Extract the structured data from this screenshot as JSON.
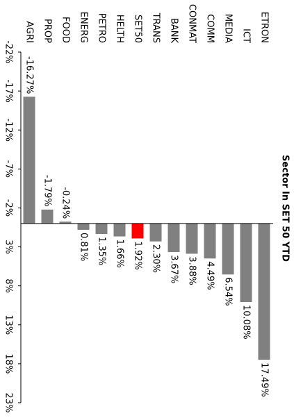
{
  "chart_data": {
    "type": "bar",
    "orientation": "rotated-90",
    "title": "Sector In SET 50 YTD",
    "categories": [
      "AGRI",
      "PROP",
      "FOOD",
      "ENERG",
      "PETRO",
      "HELTH",
      "SET50",
      "TRANS",
      "BANK",
      "CONMAT",
      "COMM",
      "MEDIA",
      "ICT",
      "ETRON"
    ],
    "values": [
      -16.27,
      -1.79,
      -0.24,
      0.81,
      1.35,
      1.66,
      1.92,
      2.3,
      3.67,
      3.88,
      4.49,
      6.54,
      10.08,
      17.49
    ],
    "value_labels": [
      "-16.27%",
      "-1.79%",
      "-0.24%",
      "0.81%",
      "1.35%",
      "1.66%",
      "1.92%",
      "2.30%",
      "3.67%",
      "3.88%",
      "4.49%",
      "6.54%",
      "10.08%",
      "17.49%"
    ],
    "colors": [
      "#808080",
      "#808080",
      "#808080",
      "#808080",
      "#808080",
      "#808080",
      "#ff0000",
      "#808080",
      "#808080",
      "#808080",
      "#808080",
      "#808080",
      "#808080",
      "#808080"
    ],
    "ylim": [
      -22,
      23
    ],
    "yticks": [
      {
        "value": -22,
        "label": "-22%"
      },
      {
        "value": -17,
        "label": "-17%"
      },
      {
        "value": -12,
        "label": "-12%"
      },
      {
        "value": -7,
        "label": "-7%"
      },
      {
        "value": -2,
        "label": "-2%"
      },
      {
        "value": 3,
        "label": "3%"
      },
      {
        "value": 8,
        "label": "8%"
      },
      {
        "value": 13,
        "label": "13%"
      },
      {
        "value": 18,
        "label": "18%"
      },
      {
        "value": 23,
        "label": "23%"
      }
    ]
  }
}
